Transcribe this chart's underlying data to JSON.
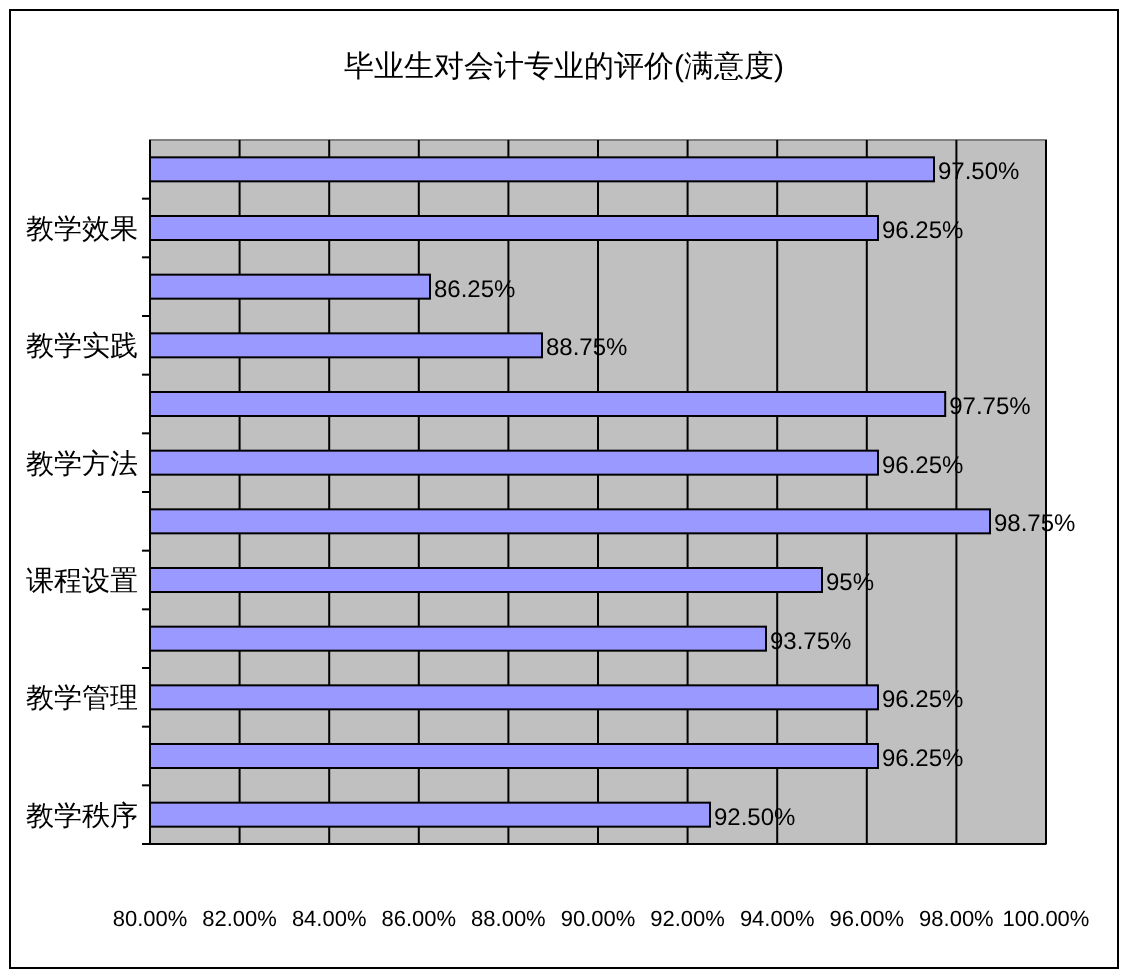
{
  "chart_data": {
    "type": "bar",
    "orientation": "horizontal",
    "title": "毕业生对会计专业的评价(满意度)",
    "categories": [
      null,
      "教学效果",
      null,
      "教学实践",
      null,
      "教学方法",
      null,
      "课程设置",
      null,
      "教学管理",
      null,
      "教学秩序"
    ],
    "values": [
      97.5,
      96.25,
      86.25,
      88.75,
      97.75,
      96.25,
      98.75,
      95,
      93.75,
      96.25,
      96.25,
      92.5
    ],
    "value_labels": [
      "97.50%",
      "96.25%",
      "86.25%",
      "88.75%",
      "97.75%",
      "96.25%",
      "98.75%",
      "95%",
      "93.75%",
      "96.25%",
      "96.25%",
      "92.50%"
    ],
    "color": "#9999ff",
    "xlim": [
      80,
      100
    ],
    "xticks": [
      {
        "value": 80,
        "label": "80.00%"
      },
      {
        "value": 82,
        "label": "82.00%"
      },
      {
        "value": 84,
        "label": "84.00%"
      },
      {
        "value": 86,
        "label": "86.00%"
      },
      {
        "value": 88,
        "label": "88.00%"
      },
      {
        "value": 90,
        "label": "90.00%"
      },
      {
        "value": 92,
        "label": "92.00%"
      },
      {
        "value": 94,
        "label": "94.00%"
      },
      {
        "value": 96,
        "label": "96.00%"
      },
      {
        "value": 98,
        "label": "98.00%"
      },
      {
        "value": 100,
        "label": "100.00%"
      }
    ],
    "grid": "x"
  }
}
